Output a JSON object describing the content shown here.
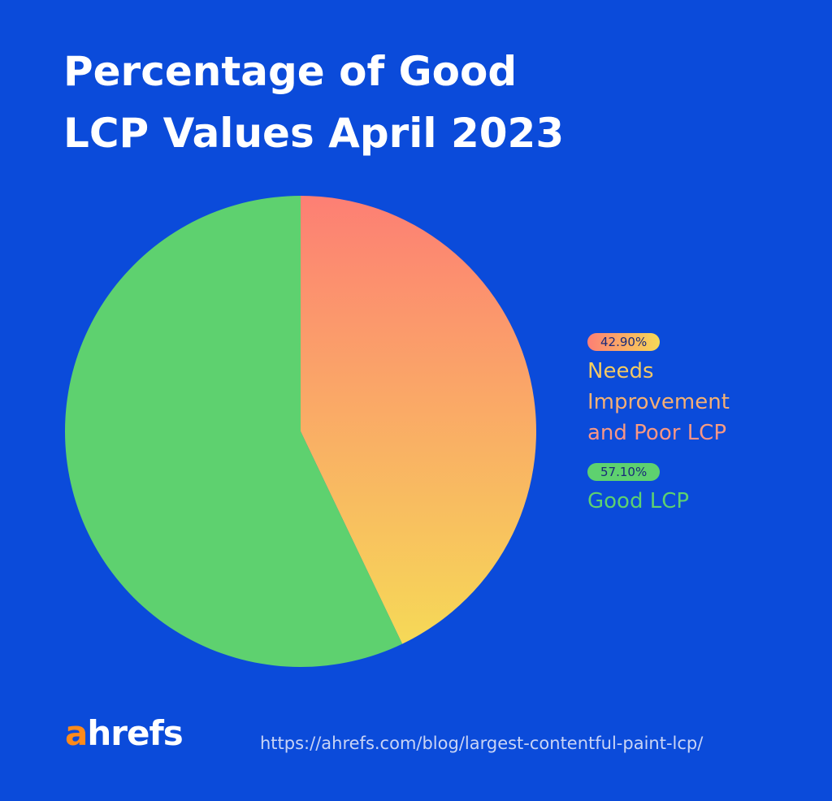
{
  "chart_data": {
    "type": "pie",
    "title": "Percentage of Good LCP Values April 2023",
    "categories": [
      "Needs Improvement and Poor LCP",
      "Good LCP"
    ],
    "values": [
      42.9,
      57.1
    ],
    "value_labels": [
      "42.90%",
      "57.10%"
    ],
    "colors": [
      [
        "#fd7f74",
        "#f6d957"
      ],
      [
        "#5ed16f",
        "#5ed16f"
      ]
    ],
    "label_colors": [
      [
        "#f3d65b",
        "#fb8a8c"
      ],
      [
        "#5ed16f",
        "#5ed16f"
      ]
    ]
  },
  "footer": {
    "logo": "ahrefs",
    "url": "https://ahrefs.com/blog/largest-contentful-paint-lcp/"
  }
}
